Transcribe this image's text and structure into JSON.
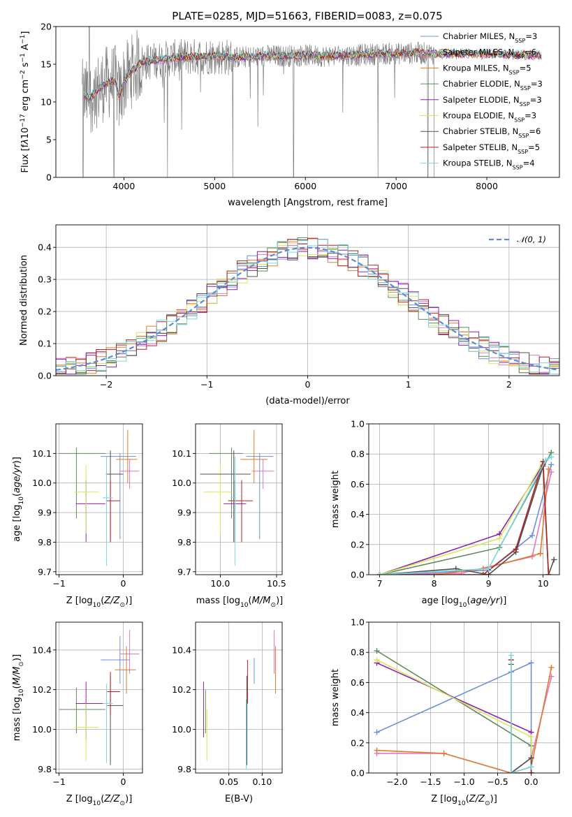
{
  "title": "PLATE=0285, MJD=51663, FIBERID=0083, z=0.075",
  "colors": {
    "Chabrier MILES": "#6a8fdc",
    "Salpeter MILES": "#e377c2",
    "Kroupa MILES": "#e07b2a",
    "Chabrier ELODIE": "#5f8a5a",
    "Salpeter ELODIE": "#8f1fb0",
    "Kroupa ELODIE": "#d4e85a",
    "Chabrier STELIB": "#505050",
    "Salpeter STELIB": "#b22222",
    "Kroupa STELIB": "#7ad7dd",
    "data": "#808080",
    "normal": "#5b8bd6"
  },
  "chart_data": [
    {
      "id": "spectrum",
      "type": "line",
      "xlabel": "wavelength [Angstrom, rest frame]",
      "xlim": [
        3250,
        8800
      ],
      "ylim": [
        0,
        20
      ],
      "xticks": [
        4000,
        5000,
        6000,
        7000,
        8000
      ],
      "yticks": [
        0,
        5,
        10,
        15,
        20
      ],
      "legend": [
        {
          "label": "Chabrier MILES, N_SSP=3",
          "base": "Chabrier MILES, N",
          "sub": "SSP",
          "tail": "=3"
        },
        {
          "label": "Salpeter MILES, N_SSP=6",
          "base": "Salpeter MILES, N",
          "sub": "SSP",
          "tail": "=6"
        },
        {
          "label": "Kroupa MILES, N_SSP=5",
          "base": "Kroupa MILES, N",
          "sub": "SSP",
          "tail": "=5"
        },
        {
          "label": "Chabrier ELODIE, N_SSP=3",
          "base": "Chabrier ELODIE, N",
          "sub": "SSP",
          "tail": "=3"
        },
        {
          "label": "Salpeter ELODIE, N_SSP=3",
          "base": "Salpeter ELODIE, N",
          "sub": "SSP",
          "tail": "=3"
        },
        {
          "label": "Kroupa ELODIE, N_SSP=3",
          "base": "Kroupa ELODIE, N",
          "sub": "SSP",
          "tail": "=3"
        },
        {
          "label": "Chabrier STELIB, N_SSP=6",
          "base": "Chabrier STELIB, N",
          "sub": "SSP",
          "tail": "=6"
        },
        {
          "label": "Salpeter STELIB, N_SSP=5",
          "base": "Salpeter STELIB, N",
          "sub": "SSP",
          "tail": "=5"
        },
        {
          "label": "Kroupa STELIB, N_SSP=4",
          "base": "Kroupa STELIB, N",
          "sub": "SSP",
          "tail": "=4"
        }
      ],
      "model_continuum": {
        "x": [
          3560,
          3620,
          3700,
          3800,
          3900,
          3950,
          4000,
          4100,
          4200,
          4400,
          4600,
          4800,
          5000,
          5200,
          5400,
          5600,
          5800,
          6000,
          6200,
          6400,
          6600,
          6800,
          7000,
          7200,
          7400,
          7600,
          7800,
          8000,
          8200,
          8400,
          8600
        ],
        "y": [
          10.8,
          10.5,
          11.5,
          12.5,
          12.8,
          10.5,
          12.8,
          14.3,
          15.2,
          15.6,
          15.9,
          16.0,
          16.1,
          15.9,
          16.0,
          16.1,
          16.1,
          16.2,
          16.1,
          16.2,
          16.2,
          16.4,
          16.4,
          16.5,
          16.4,
          16.4,
          16.4,
          16.3,
          16.3,
          16.2,
          16.2
        ]
      },
      "data_range": [
        3540,
        7420
      ],
      "data_noise_amplitude_blue": 5,
      "data_noise_amplitude_red": 1.5,
      "data_spikes_to_zero_at": [
        3550,
        3890,
        4480,
        5200,
        5870,
        6800,
        7350,
        7420
      ]
    },
    {
      "id": "residuals",
      "type": "step",
      "xlabel": "(data-model)/error",
      "ylabel": "Normed distribution",
      "xlim": [
        -2.5,
        2.5
      ],
      "ylim": [
        0,
        0.47
      ],
      "xticks": [
        -2,
        -1,
        0,
        1,
        2
      ],
      "yticks": [
        0.0,
        0.1,
        0.2,
        0.3,
        0.4
      ],
      "bin_width": 0.1,
      "legend": "𝒩(0, 1)",
      "normal_curve": {
        "mean": 0,
        "sigma": 1
      }
    },
    {
      "id": "age-vs-Z",
      "type": "scatter",
      "xlabel": "Z [log10(Z/Z⊙)]",
      "ylabel": "age  [log10(age/yr)]",
      "xlim": [
        -1.05,
        0.3
      ],
      "ylim": [
        9.69,
        10.2
      ],
      "xticks": [
        -1,
        0
      ],
      "yticks": [
        9.7,
        9.8,
        9.9,
        10.0,
        10.1
      ],
      "points": [
        {
          "model": "Chabrier MILES",
          "x": -0.05,
          "xerr": [
            0.3,
            0.25
          ],
          "y": 10.09,
          "yerr": [
            0.28,
            0.01
          ]
        },
        {
          "model": "Salpeter MILES",
          "x": 0.1,
          "xerr": [
            0.15,
            0.15
          ],
          "y": 10.04,
          "yerr": [
            0.06,
            0.04
          ]
        },
        {
          "model": "Kroupa MILES",
          "x": 0.07,
          "xerr": [
            0.18,
            0.15
          ],
          "y": 10.08,
          "yerr": [
            0.08,
            0.1
          ]
        },
        {
          "model": "Chabrier ELODIE",
          "x": -0.73,
          "xerr": [
            0.27,
            0.45
          ],
          "y": 10.1,
          "yerr": [
            0.22,
            0.02
          ]
        },
        {
          "model": "Salpeter ELODIE",
          "x": -0.58,
          "xerr": [
            0.16,
            0.3
          ],
          "y": 9.93,
          "yerr": [
            0.13,
            0.08
          ]
        },
        {
          "model": "Kroupa ELODIE",
          "x": -0.58,
          "xerr": [
            0.18,
            0.2
          ],
          "y": 9.97,
          "yerr": [
            0.14,
            0.09
          ]
        },
        {
          "model": "Chabrier STELIB",
          "x": -0.2,
          "xerr": [
            0.07,
            0.2
          ],
          "y": 10.03,
          "yerr": [
            0.23,
            0.08
          ]
        },
        {
          "model": "Salpeter STELIB",
          "x": -0.2,
          "xerr": [
            0.07,
            0.15
          ],
          "y": 9.94,
          "yerr": [
            0.14,
            0.07
          ]
        },
        {
          "model": "Kroupa STELIB",
          "x": -0.26,
          "xerr": [
            0.06,
            0.1
          ],
          "y": 9.95,
          "yerr": [
            0.23,
            0.14
          ]
        }
      ]
    },
    {
      "id": "age-vs-mass",
      "type": "scatter",
      "xlabel": "mass [log10(M/M⊙)]",
      "xlim": [
        9.78,
        10.55
      ],
      "ylim": [
        9.69,
        10.2
      ],
      "xticks": [
        10.0,
        10.5
      ],
      "yticks": [
        9.7,
        9.8,
        9.9,
        10.0,
        10.1
      ],
      "points": [
        {
          "model": "Chabrier MILES",
          "x": 10.35,
          "xerr": [
            0.12,
            0.12
          ],
          "y": 10.09,
          "yerr": [
            0.28,
            0.01
          ]
        },
        {
          "model": "Salpeter MILES",
          "x": 10.38,
          "xerr": [
            0.1,
            0.1
          ],
          "y": 10.04,
          "yerr": [
            0.06,
            0.04
          ]
        },
        {
          "model": "Kroupa MILES",
          "x": 10.3,
          "xerr": [
            0.12,
            0.12
          ],
          "y": 10.08,
          "yerr": [
            0.08,
            0.1
          ]
        },
        {
          "model": "Chabrier ELODIE",
          "x": 10.1,
          "xerr": [
            0.2,
            0.1
          ],
          "y": 10.1,
          "yerr": [
            0.22,
            0.02
          ]
        },
        {
          "model": "Salpeter ELODIE",
          "x": 10.13,
          "xerr": [
            0.1,
            0.1
          ],
          "y": 9.93,
          "yerr": [
            0.13,
            0.08
          ]
        },
        {
          "model": "Kroupa ELODIE",
          "x": 10.0,
          "xerr": [
            0.15,
            0.1
          ],
          "y": 9.97,
          "yerr": [
            0.14,
            0.09
          ]
        },
        {
          "model": "Chabrier STELIB",
          "x": 10.12,
          "xerr": [
            0.3,
            0.15
          ],
          "y": 10.03,
          "yerr": [
            0.23,
            0.08
          ]
        },
        {
          "model": "Salpeter STELIB",
          "x": 10.19,
          "xerr": [
            0.12,
            0.1
          ],
          "y": 9.94,
          "yerr": [
            0.14,
            0.07
          ]
        },
        {
          "model": "Kroupa STELIB",
          "x": 10.13,
          "xerr": [
            0.04,
            0.01
          ],
          "y": 9.95,
          "yerr": [
            0.23,
            0.14
          ]
        }
      ]
    },
    {
      "id": "weight-vs-age",
      "type": "line",
      "xlabel": "age  [log10(age/yr)]",
      "ylabel": "mass weight",
      "xlim": [
        6.8,
        10.3
      ],
      "ylim": [
        0.0,
        1.0
      ],
      "xticks": [
        7,
        8,
        9,
        10
      ],
      "yticks": [
        0.0,
        0.2,
        0.4,
        0.6,
        0.8,
        1.0
      ],
      "series": [
        {
          "model": "Chabrier MILES",
          "x": [
            7.0,
            9.0,
            9.8,
            10.15
          ],
          "y": [
            0.0,
            0.03,
            0.26,
            0.73
          ]
        },
        {
          "model": "Salpeter MILES",
          "x": [
            7.0,
            8.5,
            9.8,
            10.15
          ],
          "y": [
            0.0,
            0.01,
            0.12,
            0.68
          ]
        },
        {
          "model": "Kroupa MILES",
          "x": [
            7.0,
            8.0,
            8.9,
            9.95,
            10.1
          ],
          "y": [
            0.0,
            0.0,
            0.04,
            0.14,
            0.7
          ]
        },
        {
          "model": "Chabrier ELODIE",
          "x": [
            7.0,
            9.2,
            10.15
          ],
          "y": [
            0.0,
            0.18,
            0.81
          ]
        },
        {
          "model": "Salpeter ELODIE",
          "x": [
            7.0,
            9.2,
            10.0
          ],
          "y": [
            0.0,
            0.27,
            0.73
          ]
        },
        {
          "model": "Kroupa ELODIE",
          "x": [
            7.0,
            9.2,
            10.0
          ],
          "y": [
            0.0,
            0.24,
            0.75
          ]
        },
        {
          "model": "Chabrier STELIB",
          "x": [
            7.0,
            8.4,
            9.0,
            9.5,
            10.0,
            10.1,
            10.2
          ],
          "y": [
            0.0,
            0.04,
            0.0,
            0.15,
            0.72,
            0.0,
            0.1
          ]
        },
        {
          "model": "Salpeter STELIB",
          "x": [
            7.0,
            8.9,
            9.5,
            10.0,
            10.1
          ],
          "y": [
            0.0,
            0.0,
            0.17,
            0.75,
            0.0
          ]
        },
        {
          "model": "Kroupa STELIB",
          "x": [
            7.0,
            9.0,
            10.05,
            10.15
          ],
          "y": [
            0.0,
            0.04,
            0.76,
            0.78
          ]
        }
      ]
    },
    {
      "id": "mass-vs-Z",
      "type": "scatter",
      "xlabel": "Z [log10(Z/Z⊙)]",
      "ylabel": "mass [log10(M/M⊙)]",
      "xlim": [
        -1.05,
        0.3
      ],
      "ylim": [
        9.78,
        10.54
      ],
      "xticks": [
        -1,
        0
      ],
      "yticks": [
        9.8,
        10.0,
        10.2,
        10.4
      ],
      "points": [
        {
          "model": "Chabrier MILES",
          "x": -0.05,
          "xerr": [
            0.3,
            0.15
          ],
          "y": 10.35,
          "yerr": [
            0.12,
            0.12
          ]
        },
        {
          "model": "Salpeter MILES",
          "x": 0.1,
          "xerr": [
            0.15,
            0.15
          ],
          "y": 10.38,
          "yerr": [
            0.1,
            0.12
          ]
        },
        {
          "model": "Kroupa MILES",
          "x": 0.05,
          "xerr": [
            0.18,
            0.15
          ],
          "y": 10.3,
          "yerr": [
            0.12,
            0.12
          ]
        },
        {
          "model": "Chabrier ELODIE",
          "x": -0.73,
          "xerr": [
            0.27,
            0.45
          ],
          "y": 10.1,
          "yerr": [
            0.12,
            0.11
          ]
        },
        {
          "model": "Salpeter ELODIE",
          "x": -0.58,
          "xerr": [
            0.16,
            0.3
          ],
          "y": 10.13,
          "yerr": [
            0.18,
            0.11
          ]
        },
        {
          "model": "Kroupa ELODIE",
          "x": -0.58,
          "xerr": [
            0.18,
            0.2
          ],
          "y": 10.01,
          "yerr": [
            0.17,
            0.12
          ]
        },
        {
          "model": "Chabrier STELIB",
          "x": -0.2,
          "xerr": [
            0.05,
            0.2
          ],
          "y": 10.12,
          "yerr": [
            0.3,
            0.15
          ]
        },
        {
          "model": "Salpeter STELIB",
          "x": -0.2,
          "xerr": [
            0.05,
            0.15
          ],
          "y": 10.19,
          "yerr": [
            0.12,
            0.1
          ]
        },
        {
          "model": "Kroupa STELIB",
          "x": -0.26,
          "xerr": [
            0.06,
            0.1
          ],
          "y": 10.13,
          "yerr": [
            0.3,
            0.1
          ]
        }
      ]
    },
    {
      "id": "mass-vs-EBV",
      "type": "scatter",
      "xlabel": "E(B-V)",
      "xlim": [
        0.0,
        0.13
      ],
      "ylim": [
        9.78,
        10.54
      ],
      "xticks": [
        0.05,
        0.1
      ],
      "yticks": [
        9.8,
        10.0,
        10.2,
        10.4
      ],
      "points": [
        {
          "model": "Chabrier MILES",
          "x": 0.088,
          "y": 10.35,
          "yerr": [
            0.12,
            0.01
          ]
        },
        {
          "model": "Salpeter MILES",
          "x": 0.118,
          "y": 10.38,
          "yerr": [
            0.1,
            0.12
          ]
        },
        {
          "model": "Kroupa MILES",
          "x": 0.12,
          "y": 10.3,
          "yerr": [
            0.12,
            0.12
          ]
        },
        {
          "model": "Chabrier ELODIE",
          "x": 0.015,
          "y": 10.1,
          "yerr": [
            0.12,
            0.1
          ]
        },
        {
          "model": "Salpeter ELODIE",
          "x": 0.012,
          "y": 10.1,
          "yerr": [
            0.14,
            0.14
          ]
        },
        {
          "model": "Kroupa ELODIE",
          "x": 0.017,
          "y": 10.0,
          "yerr": [
            0.16,
            0.1
          ]
        },
        {
          "model": "Chabrier STELIB",
          "x": 0.077,
          "y": 10.12,
          "yerr": [
            0.3,
            0.15
          ]
        },
        {
          "model": "Salpeter STELIB",
          "x": 0.078,
          "y": 10.25,
          "yerr": [
            0.12,
            0.1
          ]
        },
        {
          "model": "Kroupa STELIB",
          "x": 0.076,
          "y": 10.0,
          "yerr": [
            0.2,
            0.15
          ]
        }
      ]
    },
    {
      "id": "weight-vs-Z",
      "type": "line",
      "xlabel": "Z [log10(Z/Z⊙)]",
      "ylabel": "mass weight",
      "xlim": [
        -2.42,
        0.42
      ],
      "ylim": [
        0.0,
        1.0
      ],
      "xticks": [
        -2.0,
        -1.5,
        -1.0,
        -0.5,
        0.0
      ],
      "yticks": [
        0.0,
        0.2,
        0.4,
        0.6,
        0.8,
        1.0
      ],
      "series": [
        {
          "model": "Chabrier MILES",
          "x": [
            -2.3,
            -0.3,
            0.0,
            0.0
          ],
          "y": [
            0.27,
            0.67,
            0.73,
            0.0
          ]
        },
        {
          "model": "Salpeter MILES",
          "x": [
            -2.3,
            -1.3,
            -0.3,
            0.0,
            0.3
          ],
          "y": [
            0.13,
            0.13,
            0.0,
            0.1,
            0.64
          ]
        },
        {
          "model": "Kroupa MILES",
          "x": [
            -2.3,
            -1.3,
            -0.3,
            0.0,
            0.3
          ],
          "y": [
            0.15,
            0.13,
            0.0,
            0.04,
            0.7
          ]
        },
        {
          "model": "Chabrier ELODIE",
          "x": [
            -2.3,
            0.0,
            0.0
          ],
          "y": [
            0.81,
            0.18,
            0.0
          ]
        },
        {
          "model": "Salpeter ELODIE",
          "x": [
            -2.3,
            0.0,
            0.0
          ],
          "y": [
            0.73,
            0.27,
            0.0
          ]
        },
        {
          "model": "Kroupa ELODIE",
          "x": [
            -2.3,
            0.0,
            0.0
          ],
          "y": [
            0.75,
            0.24,
            0.0
          ]
        },
        {
          "model": "Chabrier STELIB",
          "x": [
            -0.3,
            -0.3,
            0.0,
            0.0
          ],
          "y": [
            0.72,
            0.0,
            0.1,
            0.0
          ]
        },
        {
          "model": "Salpeter STELIB",
          "x": [
            -0.3,
            -0.3,
            0.0
          ],
          "y": [
            0.75,
            0.0,
            0.0
          ]
        },
        {
          "model": "Kroupa STELIB",
          "x": [
            -0.3,
            -0.3,
            0.0
          ],
          "y": [
            0.78,
            0.0,
            0.04
          ]
        }
      ]
    }
  ]
}
